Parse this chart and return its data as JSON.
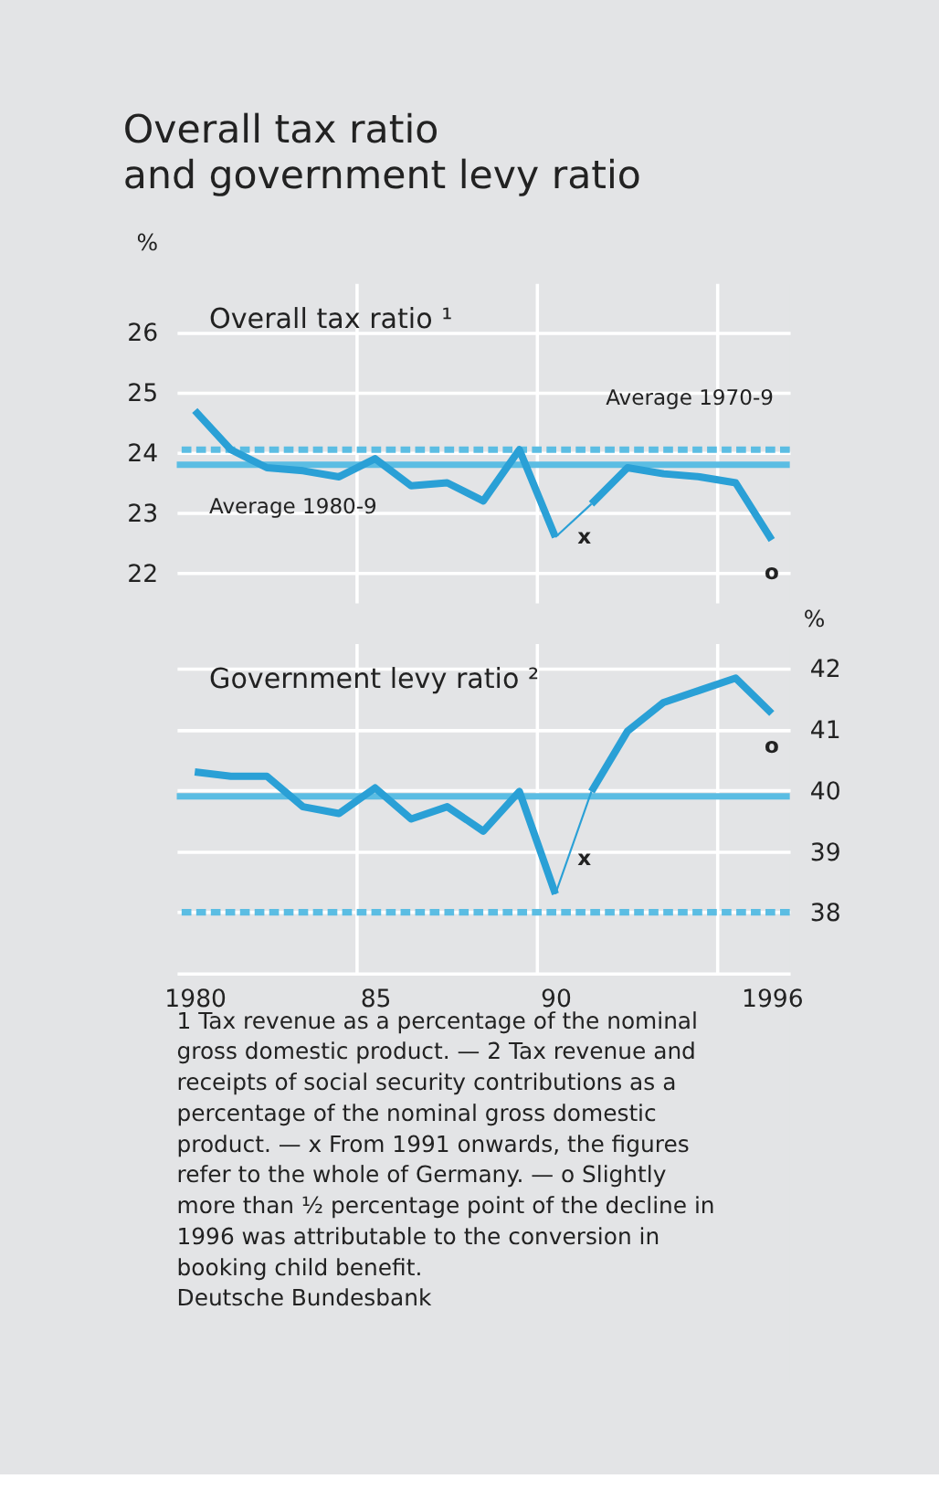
{
  "chart_data": [
    {
      "type": "line",
      "title": "Overall tax ratio\nand government levy ratio",
      "subtitle": "Overall tax ratio ¹",
      "ylabel": "%",
      "xlim": [
        1979.5,
        1996.5
      ],
      "xticks": [
        {
          "value": 1984.5,
          "label": null
        },
        {
          "value": 1989.5,
          "label": null
        },
        {
          "value": 1994.5,
          "label": null
        }
      ],
      "ylim": [
        21.5,
        26.8
      ],
      "yticks": [
        22,
        23,
        24,
        25,
        26
      ],
      "grid": true,
      "tick_labels": "y",
      "marker": "none",
      "line_style": "solid",
      "series": [
        {
          "color": "#2aa0d6",
          "x": [
            1980,
            1981,
            1982,
            1983,
            1984,
            1985,
            1986,
            1987,
            1988,
            1989,
            1990
          ],
          "values": [
            24.7,
            24.05,
            23.75,
            23.7,
            23.6,
            23.9,
            23.45,
            23.5,
            23.2,
            24.05,
            22.6
          ]
        },
        {
          "color": "#2aa0d6",
          "x": [
            1991,
            1992,
            1993,
            1994,
            1995,
            1996
          ],
          "values": [
            23.15,
            23.75,
            23.65,
            23.6,
            23.5,
            22.55
          ]
        },
        {
          "color": "#2aa0d6",
          "x": [
            1990,
            1991
          ],
          "values": [
            22.6,
            23.15
          ]
        }
      ],
      "ref_lines": [
        {
          "axis": "y",
          "value": 24.05,
          "label": "Average 1970-9",
          "color": "#5bbde3",
          "line_style": "dashed"
        },
        {
          "axis": "y",
          "value": 23.8,
          "label": "Average 1980-9",
          "color": "#5bbde3",
          "line_style": "solid"
        }
      ],
      "annotations": [
        "x",
        "o"
      ]
    },
    {
      "type": "line",
      "subtitle": "Government levy ratio ²",
      "y2label": "%",
      "xlim": [
        1979.5,
        1996.5
      ],
      "xticks": [
        {
          "value": 1980,
          "label": "1980"
        },
        {
          "value": 1984.5,
          "label": null
        },
        {
          "value": 1985,
          "label": "85"
        },
        {
          "value": 1989.5,
          "label": null
        },
        {
          "value": 1990,
          "label": "90"
        },
        {
          "value": 1994.5,
          "label": null
        },
        {
          "value": 1996,
          "label": "1996"
        }
      ],
      "y2lim": [
        37,
        42.4
      ],
      "y2ticks": [
        38,
        39,
        40,
        41,
        42
      ],
      "grid": true,
      "marker": "none",
      "line_style": "solid",
      "series": [
        {
          "color": "#2aa0d6",
          "axis": "y2",
          "x": [
            1980,
            1981,
            1982,
            1983,
            1984,
            1985,
            1986,
            1987,
            1988,
            1989,
            1990
          ],
          "values": [
            40.3,
            40.23,
            40.23,
            39.73,
            39.62,
            40.04,
            39.53,
            39.73,
            39.33,
            39.98,
            38.3
          ]
        },
        {
          "color": "#2aa0d6",
          "axis": "y2",
          "x": [
            1991,
            1992,
            1993,
            1994,
            1995,
            1996
          ],
          "values": [
            39.98,
            40.97,
            41.44,
            41.64,
            41.84,
            41.26
          ]
        },
        {
          "color": "#2aa0d6",
          "axis": "y2",
          "x": [
            1990,
            1991
          ],
          "values": [
            38.3,
            39.98
          ]
        }
      ],
      "ref_lines": [
        {
          "axis": "y2",
          "value": 39.9,
          "color": "#5bbde3",
          "line_style": "solid"
        },
        {
          "axis": "y2",
          "value": 38.0,
          "color": "#5bbde3",
          "line_style": "dashed"
        }
      ],
      "annotations": [
        "x",
        "o",
        "1 Tax revenue as a percentage of the nominal gross domestic product. — 2 Tax revenue and receipts of social security contributions as a percentage of the nominal gross domestic product. — x From 1991 onwards, the figures refer to the whole of Germany. — o Slightly more than ½ percentage point of the decline in 1996 was attributable to the conversion in booking child benefit.",
        "Deutsche Bundesbank"
      ]
    }
  ]
}
